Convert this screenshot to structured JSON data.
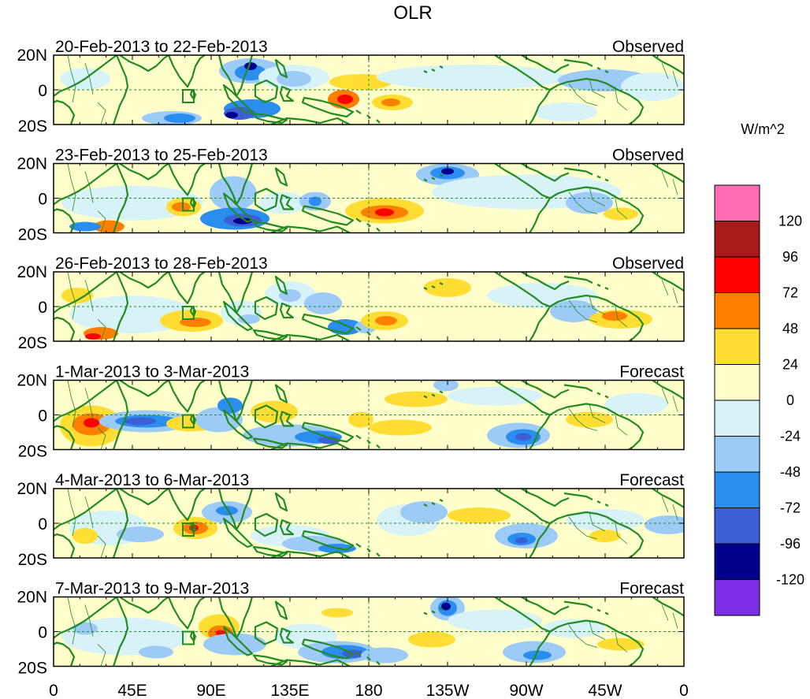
{
  "title": "OLR",
  "units": "W/m^2",
  "panels": [
    {
      "period": "20-Feb-2013 to 22-Feb-2013",
      "kind": "Observed"
    },
    {
      "period": "23-Feb-2013 to 25-Feb-2013",
      "kind": "Observed"
    },
    {
      "period": "26-Feb-2013 to 28-Feb-2013",
      "kind": "Observed"
    },
    {
      "period": "1-Mar-2013 to 3-Mar-2013",
      "kind": "Forecast"
    },
    {
      "period": "4-Mar-2013 to 6-Mar-2013",
      "kind": "Forecast"
    },
    {
      "period": "7-Mar-2013 to 9-Mar-2013",
      "kind": "Forecast"
    }
  ],
  "lat_labels": [
    "20N",
    "0",
    "20S"
  ],
  "lon_labels": [
    "0",
    "45E",
    "90E",
    "135E",
    "180",
    "135W",
    "90W",
    "45W",
    "0"
  ],
  "colorbar": {
    "colors": [
      "#7b2ee6",
      "#00008c",
      "#3d5fd6",
      "#2a8ef0",
      "#9ccbf8",
      "#d8f3f8",
      "#ffffcc",
      "#ffdd33",
      "#ff7f00",
      "#ff0000",
      "#a61a1a",
      "#ff6eb4"
    ],
    "labels": [
      "-120",
      "-96",
      "-72",
      "-48",
      "-24",
      "0",
      "24",
      "48",
      "72",
      "96",
      "120"
    ]
  },
  "colors": {
    "background": "#ffffcc",
    "coast": "#228b22",
    "frame": "#000000"
  }
}
